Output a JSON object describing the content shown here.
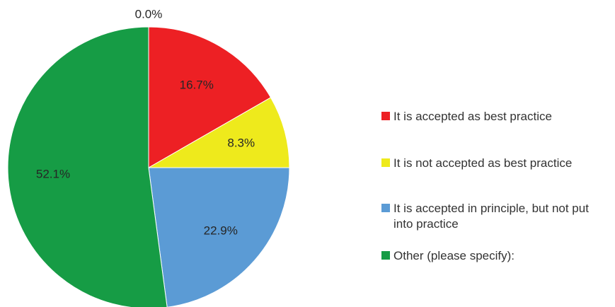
{
  "chart_data": {
    "type": "pie",
    "title": "",
    "slices": [
      {
        "label": "Other (please specify):",
        "value": 0.0,
        "display": "0.0%",
        "color": "#169c45"
      },
      {
        "label": "It is accepted as best practice",
        "value": 16.7,
        "display": "16.7%",
        "color": "#ed2024"
      },
      {
        "label": "It is not accepted as best practice",
        "value": 8.3,
        "display": "8.3%",
        "color": "#eeea1c"
      },
      {
        "label": "It is accepted in principle, but not put into practice",
        "value": 22.9,
        "display": "22.9%",
        "color": "#5b9bd5"
      },
      {
        "label": "Other (please specify):",
        "value": 52.1,
        "display": "52.1%",
        "color": "#169c45"
      }
    ],
    "legend": {
      "placement": "right",
      "items": [
        {
          "label": "It is accepted as best practice",
          "color": "#ed2024"
        },
        {
          "label": "It is not accepted as best practice",
          "color": "#eeea1c"
        },
        {
          "label": "It is accepted in principle, but not put into practice",
          "color": "#5b9bd5"
        },
        {
          "label": "Other (please specify):",
          "color": "#169c45"
        }
      ]
    }
  }
}
